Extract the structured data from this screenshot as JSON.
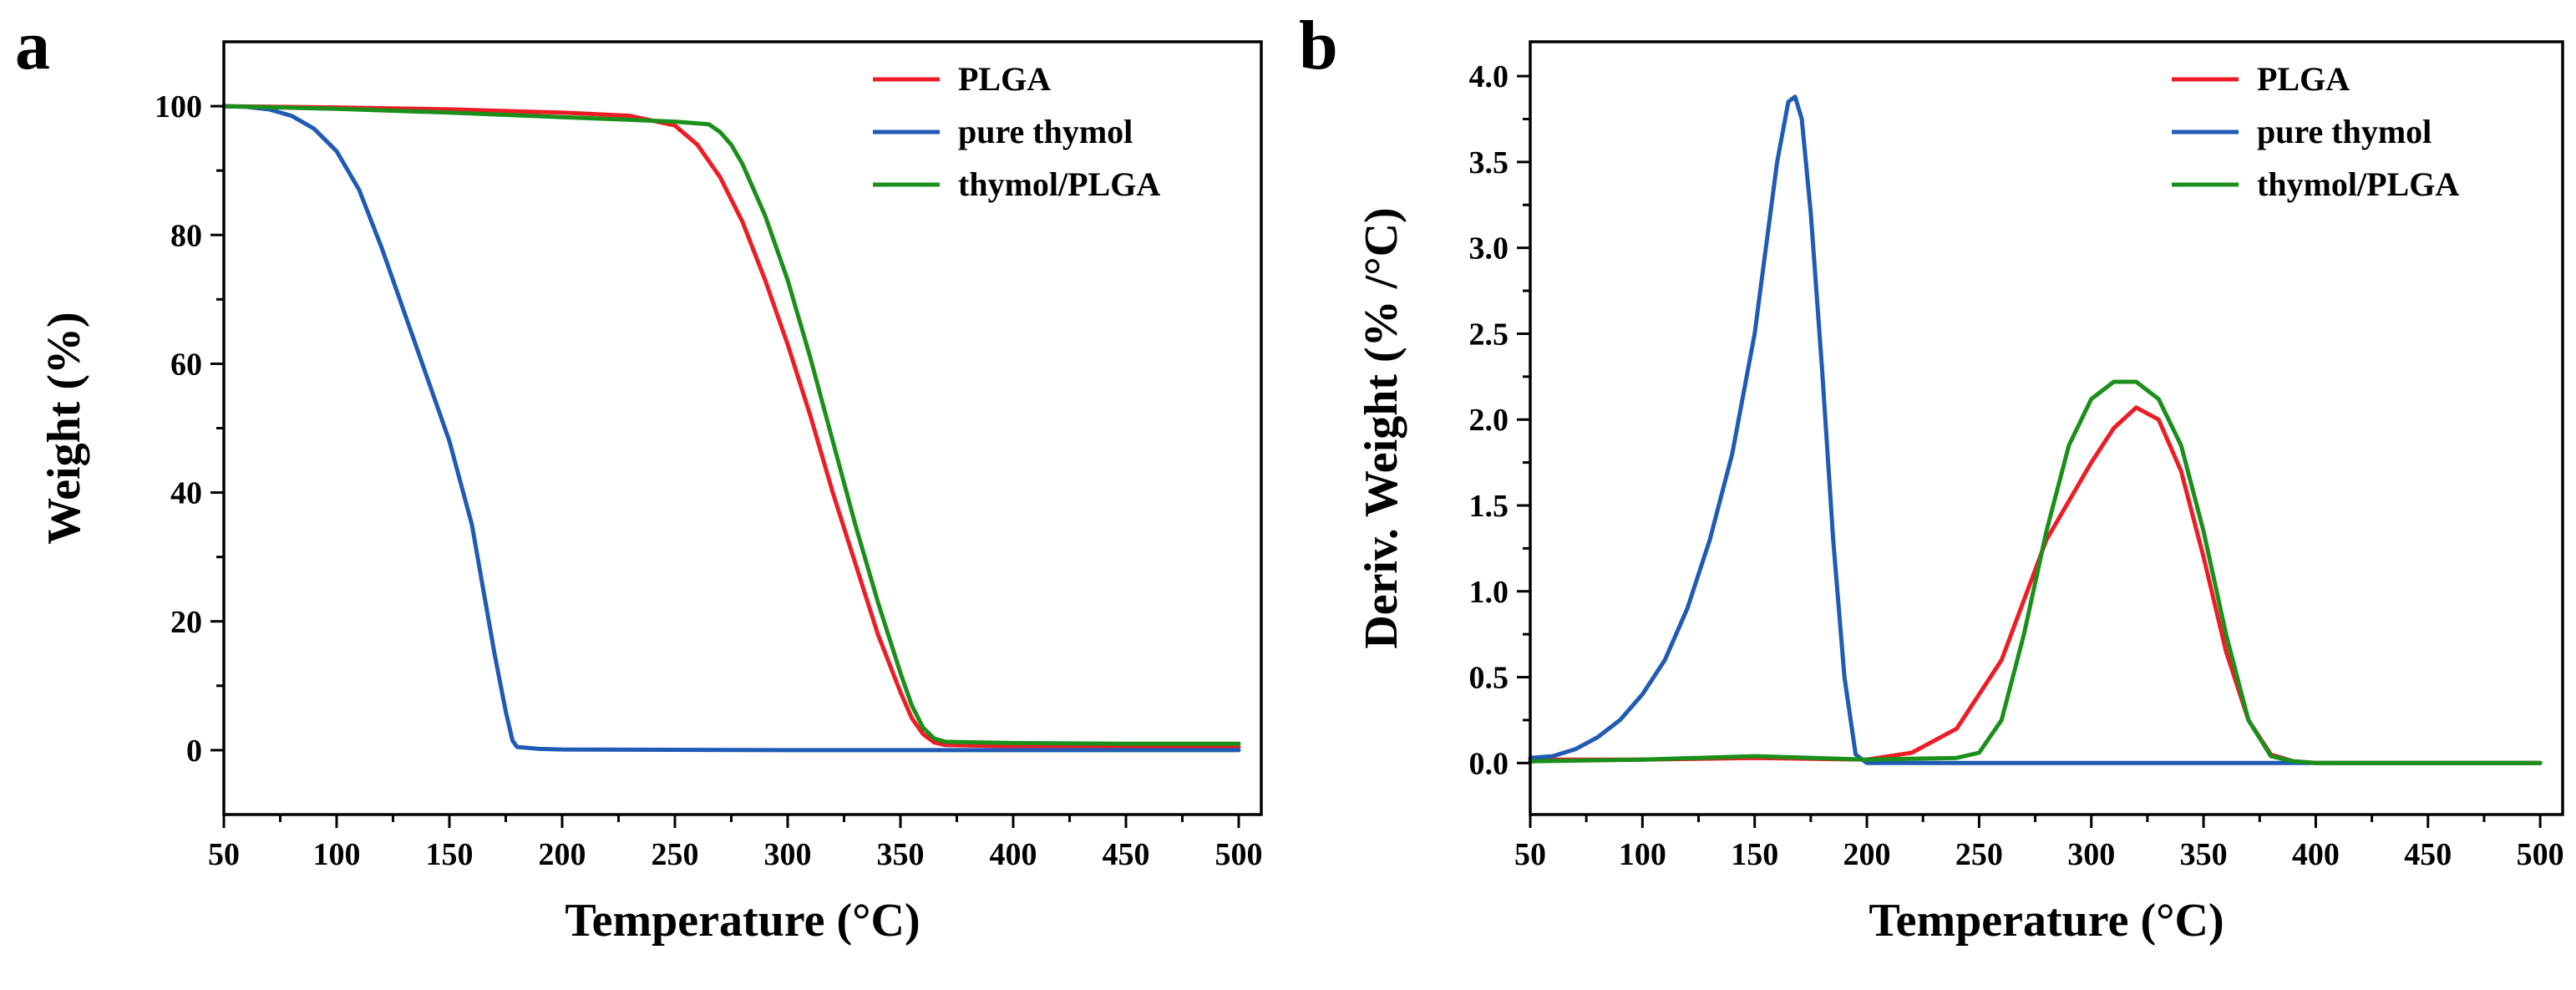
{
  "chart_data": [
    {
      "type": "line",
      "panel_label": "a",
      "xlabel": "Temperature (°C)",
      "ylabel": "Weight (%)",
      "xlim": [
        50,
        510
      ],
      "ylim": [
        -10,
        110
      ],
      "x_ticks": [
        50,
        100,
        150,
        200,
        250,
        300,
        350,
        400,
        450,
        500
      ],
      "y_ticks": [
        0,
        20,
        40,
        60,
        80,
        100
      ],
      "grid": false,
      "legend_position": "top-right",
      "series": [
        {
          "name": "PLGA",
          "color": "#ee1c25",
          "x": [
            50,
            100,
            150,
            200,
            230,
            250,
            260,
            270,
            280,
            290,
            300,
            310,
            320,
            330,
            340,
            350,
            355,
            360,
            365,
            370,
            400,
            450,
            500
          ],
          "y": [
            100,
            99.8,
            99.5,
            99,
            98.5,
            97,
            94,
            89,
            82,
            73,
            63,
            52,
            40,
            29,
            18,
            9,
            5,
            2.5,
            1.2,
            0.8,
            0.6,
            0.6,
            0.5
          ]
        },
        {
          "name": "pure thymol",
          "color": "#1f5ab4",
          "x": [
            50,
            60,
            70,
            80,
            90,
            100,
            110,
            120,
            130,
            140,
            150,
            160,
            165,
            170,
            175,
            178,
            180,
            190,
            200,
            300,
            400,
            500
          ],
          "y": [
            100,
            99.9,
            99.5,
            98.5,
            96.5,
            93,
            87,
            78,
            68,
            58,
            48,
            35,
            25,
            15,
            6,
            1.5,
            0.5,
            0.2,
            0.1,
            0,
            0,
            0
          ]
        },
        {
          "name": "thymol/PLGA",
          "color": "#1a8f1a",
          "x": [
            50,
            100,
            150,
            200,
            250,
            265,
            270,
            275,
            280,
            290,
            300,
            310,
            320,
            330,
            340,
            350,
            355,
            360,
            365,
            370,
            400,
            450,
            500
          ],
          "y": [
            100,
            99.6,
            99.0,
            98.3,
            97.6,
            97.2,
            96,
            94,
            91,
            83,
            73,
            61,
            48,
            35,
            23,
            12,
            7,
            3.5,
            1.8,
            1.3,
            1.1,
            1.0,
            1.0
          ]
        }
      ]
    },
    {
      "type": "line",
      "panel_label": "b",
      "xlabel": "Temperature (°C)",
      "ylabel": "Deriv. Weight (% /°C)",
      "xlim": [
        50,
        510
      ],
      "ylim": [
        -0.3,
        4.2
      ],
      "x_ticks": [
        50,
        100,
        150,
        200,
        250,
        300,
        350,
        400,
        450,
        500
      ],
      "y_ticks": [
        0.0,
        0.5,
        1.0,
        1.5,
        2.0,
        2.5,
        3.0,
        3.5,
        4.0
      ],
      "grid": false,
      "legend_position": "top-right",
      "series": [
        {
          "name": "PLGA",
          "color": "#ee1c25",
          "x": [
            50,
            100,
            150,
            200,
            220,
            240,
            260,
            280,
            300,
            310,
            320,
            330,
            340,
            350,
            360,
            370,
            380,
            390,
            400,
            450,
            500
          ],
          "y": [
            0.02,
            0.02,
            0.03,
            0.02,
            0.06,
            0.2,
            0.6,
            1.3,
            1.75,
            1.95,
            2.07,
            2.0,
            1.7,
            1.2,
            0.65,
            0.25,
            0.05,
            0.01,
            0,
            0,
            0
          ]
        },
        {
          "name": "pure thymol",
          "color": "#1f5ab4",
          "x": [
            50,
            60,
            70,
            80,
            90,
            100,
            110,
            120,
            130,
            140,
            150,
            155,
            160,
            165,
            168,
            171,
            175,
            180,
            185,
            190,
            195,
            200,
            300,
            400,
            500
          ],
          "y": [
            0.03,
            0.04,
            0.08,
            0.15,
            0.25,
            0.4,
            0.6,
            0.9,
            1.3,
            1.8,
            2.5,
            3.0,
            3.5,
            3.85,
            3.88,
            3.75,
            3.2,
            2.3,
            1.3,
            0.5,
            0.05,
            0,
            0,
            0,
            0
          ]
        },
        {
          "name": "thymol/PLGA",
          "color": "#1a8f1a",
          "x": [
            50,
            100,
            150,
            200,
            240,
            250,
            260,
            270,
            280,
            290,
            300,
            310,
            320,
            330,
            340,
            350,
            360,
            370,
            380,
            390,
            400,
            450,
            500
          ],
          "y": [
            0.01,
            0.02,
            0.04,
            0.02,
            0.03,
            0.06,
            0.25,
            0.75,
            1.35,
            1.85,
            2.12,
            2.22,
            2.22,
            2.12,
            1.85,
            1.35,
            0.75,
            0.25,
            0.04,
            0.01,
            0,
            0,
            0
          ]
        }
      ]
    }
  ]
}
